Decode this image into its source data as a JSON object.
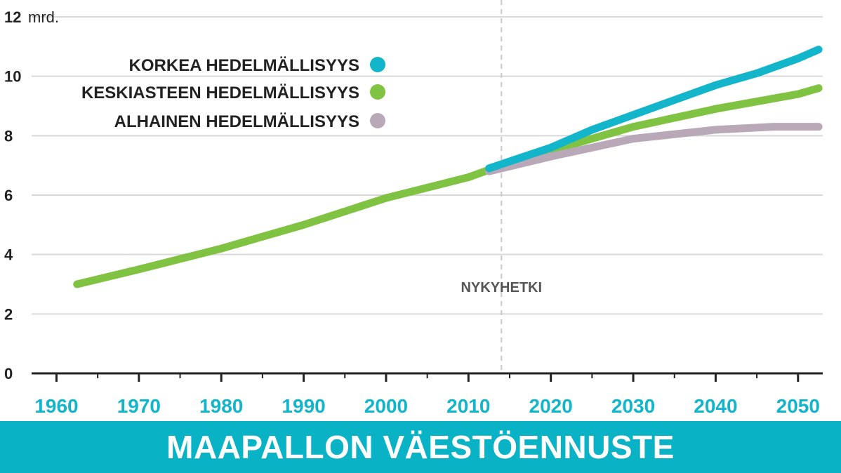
{
  "chart_data": {
    "type": "line",
    "title": "MAAPALLON VÄESTÖENNUSTE",
    "y_unit": "mrd.",
    "ylim": [
      0,
      12
    ],
    "yticks": [
      0,
      2,
      4,
      6,
      8,
      10,
      12
    ],
    "xlim": [
      1958,
      2053
    ],
    "xticks": [
      1960,
      1970,
      1980,
      1990,
      2000,
      2010,
      2020,
      2030,
      2040,
      2050
    ],
    "grid": true,
    "legend_position": "top-right",
    "annotation": {
      "text": "NYKYHETKI",
      "x": 2014
    },
    "series": [
      {
        "name": "KORKEA HEDELMÄLLISYYS",
        "color": "#12b5c9",
        "x": [
          2012.5,
          2020,
          2025,
          2030,
          2035,
          2040,
          2045,
          2050,
          2052.5
        ],
        "values": [
          6.9,
          7.6,
          8.2,
          8.7,
          9.2,
          9.7,
          10.1,
          10.6,
          10.9
        ]
      },
      {
        "name": "KESKIASTEEN HEDELMÄLLISYYS",
        "color": "#80c242",
        "x": [
          1962.5,
          1970,
          1980,
          1990,
          2000,
          2010,
          2012.5,
          2020,
          2030,
          2040,
          2050,
          2052.5
        ],
        "values": [
          3.0,
          3.5,
          4.2,
          5.0,
          5.9,
          6.6,
          6.85,
          7.5,
          8.3,
          8.9,
          9.4,
          9.6
        ]
      },
      {
        "name": "ALHAINEN HEDELMÄLLISYYS",
        "color": "#b8a8b8",
        "x": [
          2012.5,
          2020,
          2030,
          2040,
          2047,
          2052.5
        ],
        "values": [
          6.8,
          7.3,
          7.9,
          8.2,
          8.3,
          8.3
        ]
      }
    ]
  },
  "colors": {
    "accent": "#0ab2c6",
    "grid": "#d9d9d9",
    "axis": "#222222"
  }
}
